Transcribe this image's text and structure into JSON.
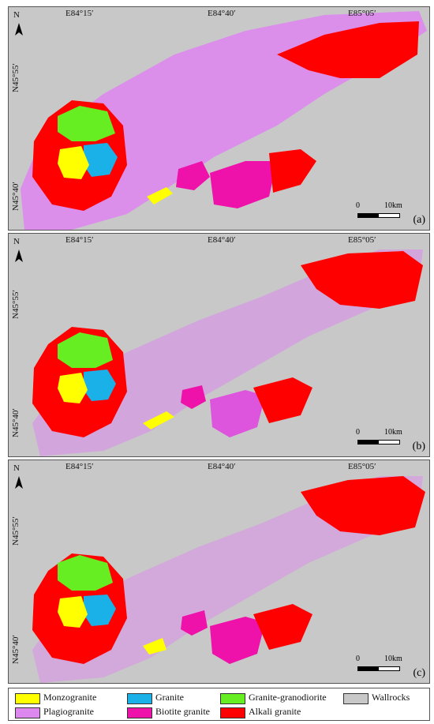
{
  "labels": {
    "north": "N",
    "lon": [
      "E84°15′",
      "E84°40′",
      "E85°05′"
    ],
    "lat": [
      "N45°55′",
      "N45°40′"
    ],
    "scale_start": "0",
    "scale_end": "10km"
  },
  "panels": [
    {
      "id": "a",
      "label": "(a)"
    },
    {
      "id": "b",
      "label": "(b)"
    },
    {
      "id": "c",
      "label": "(c)"
    }
  ],
  "legend": [
    {
      "name": "Monzogranite",
      "color": "#ffff00"
    },
    {
      "name": "Granite",
      "color": "#1ab0e8"
    },
    {
      "name": "Granite-granodiorite",
      "color": "#66ee22"
    },
    {
      "name": "Wallrocks",
      "color": "#c8c8c8"
    },
    {
      "name": "Plagiogranite",
      "color": "#dd88ee"
    },
    {
      "name": "Biotite granite",
      "color": "#ee11aa"
    },
    {
      "name": "Alkali granite",
      "color": "#ff0000"
    }
  ]
}
